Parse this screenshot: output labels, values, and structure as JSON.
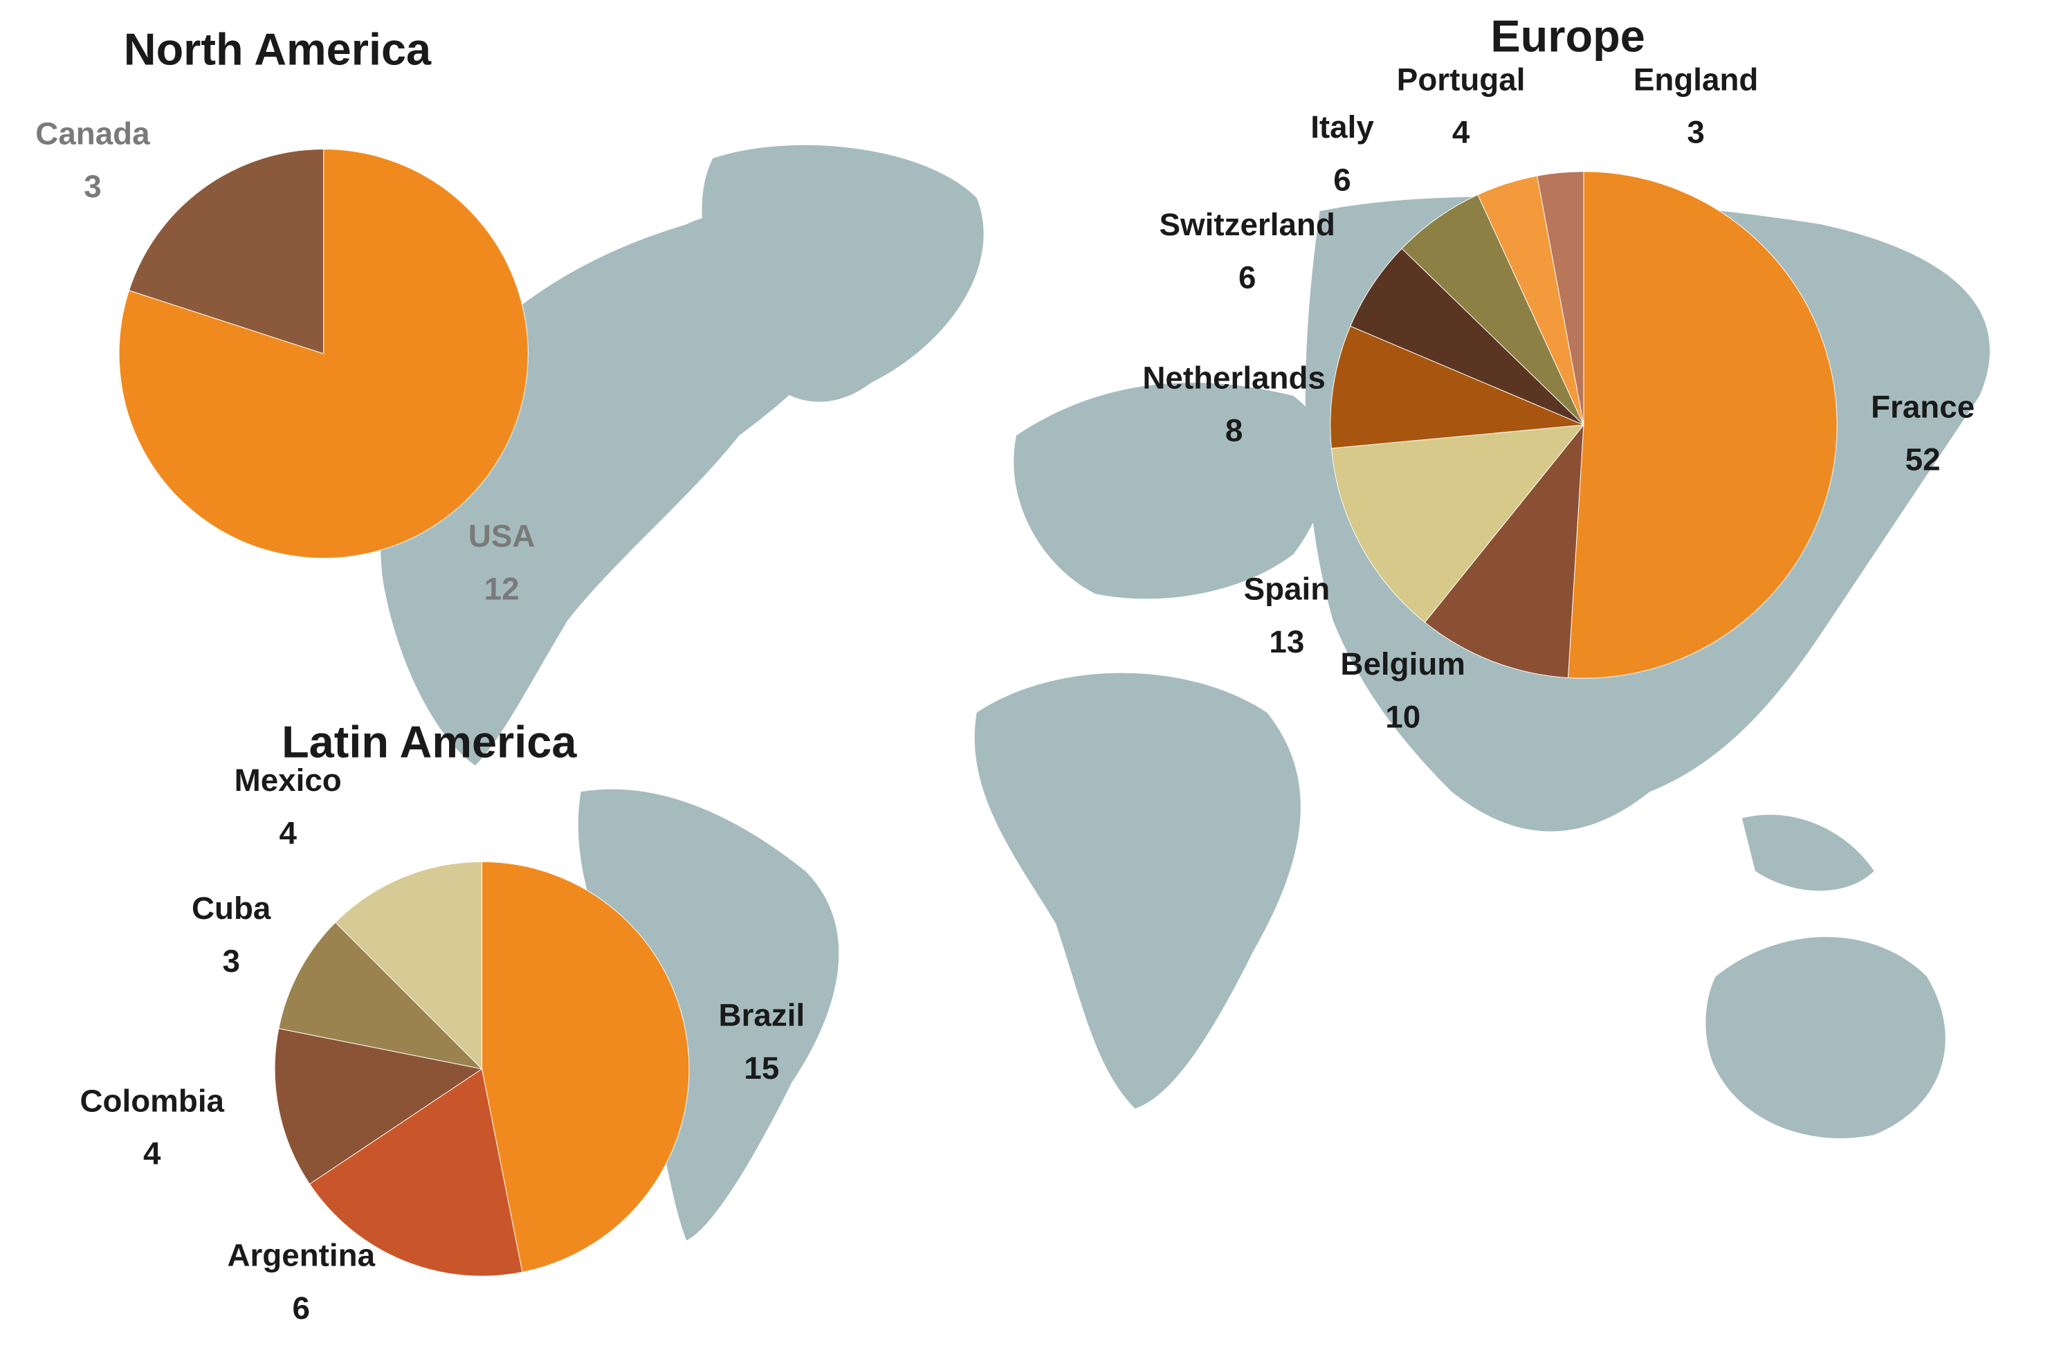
{
  "chart_data": [
    {
      "type": "pie",
      "title": "North America",
      "categories": [
        "USA",
        "Canada"
      ],
      "values": [
        12,
        3
      ],
      "colors": [
        "#f08a1e",
        "#8b5a3c"
      ]
    },
    {
      "type": "pie",
      "title": "Europe",
      "categories": [
        "France",
        "Belgium",
        "Spain",
        "Netherlands",
        "Switzerland",
        "Italy",
        "Portugal",
        "England"
      ],
      "values": [
        52,
        10,
        13,
        8,
        6,
        6,
        4,
        3
      ],
      "colors": [
        "#ee8a22",
        "#8b5034",
        "#d6c98a",
        "#a8560f",
        "#5a3522",
        "#8d8045",
        "#f39a3c",
        "#b8765a"
      ]
    },
    {
      "type": "pie",
      "title": "Latin America",
      "categories": [
        "Brazil",
        "Argentina",
        "Colombia",
        "Cuba",
        "Mexico"
      ],
      "values": [
        15,
        6,
        4,
        3,
        4
      ],
      "colors": [
        "#f08a1e",
        "#c9562a",
        "#8c5436",
        "#9b8350",
        "#d6cb94"
      ]
    }
  ]
}
